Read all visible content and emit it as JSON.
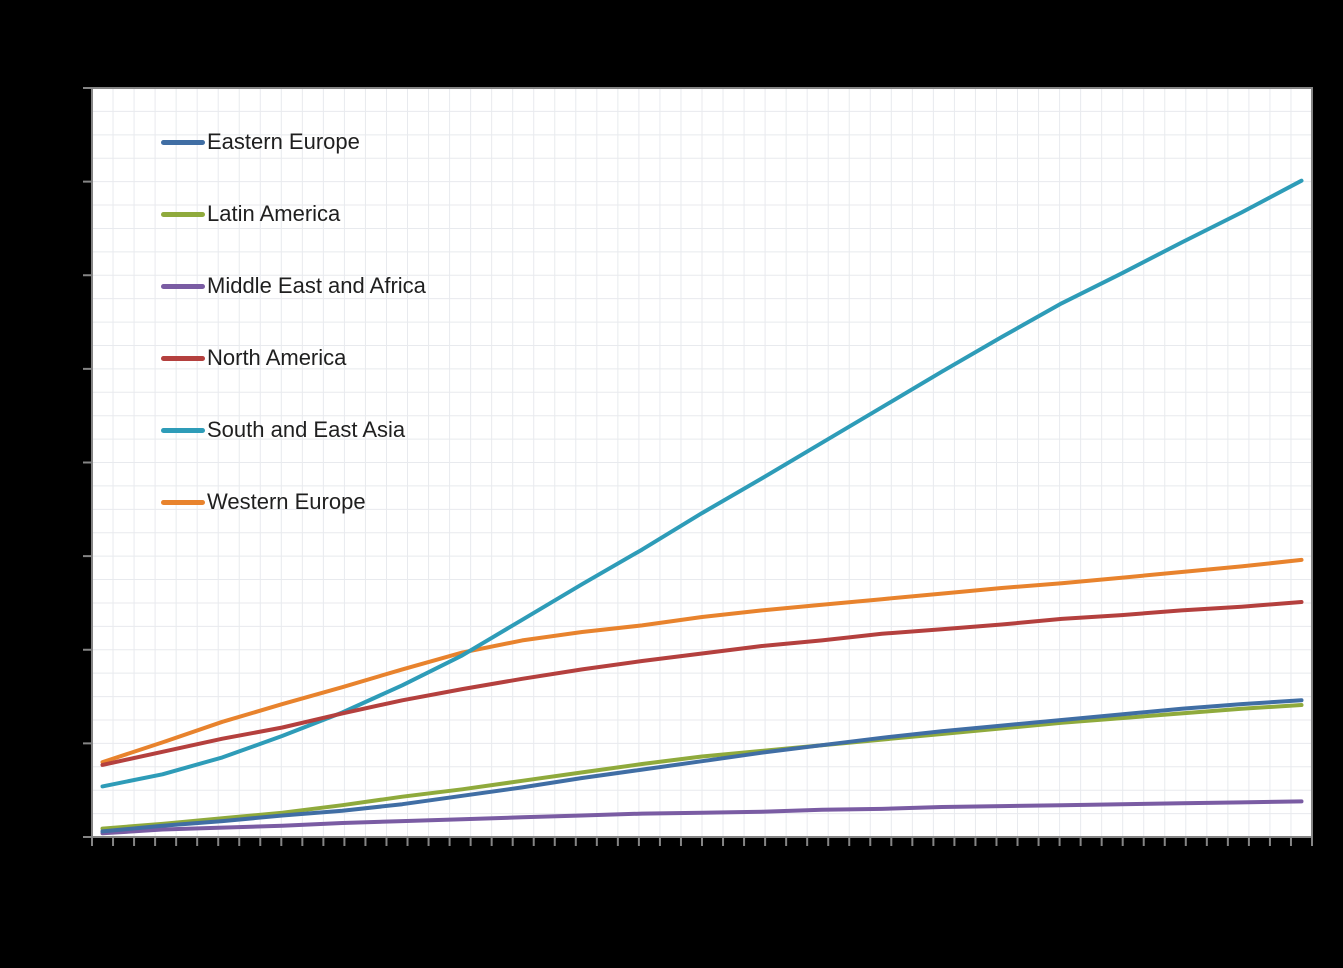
{
  "page": {
    "background_color": "#000000",
    "title": "",
    "axes_note": "axis tick labels and chart title are not visible in the screenshot (black-on-black margins); y values are expressed in major-gridline units (0 = x-axis, 8 = plot top), x as fraction of the category span"
  },
  "chart_data": {
    "type": "line",
    "title": "",
    "xlabel": "",
    "ylabel": "",
    "legend_position": "inside-top-left",
    "grid_on": true,
    "plot_bg_color": "#ffffff",
    "gridline_color": "#e8eaee",
    "axis_color": "#858585",
    "x_axis": {
      "tick_count": 59,
      "category_count": 58,
      "labels_visible": false
    },
    "y_axis": {
      "major_divisions": 8,
      "minor_per_major": 4,
      "labels_visible": false,
      "ylim_units": [
        0,
        8
      ]
    },
    "draw_order": [
      "Western Europe",
      "South and East Asia",
      "North America",
      "Middle East and Africa",
      "Latin America",
      "Eastern Europe"
    ],
    "series": [
      {
        "name": "Eastern Europe",
        "color": "#406EA4",
        "points": [
          [
            0,
            0.06
          ],
          [
            0.05,
            0.12
          ],
          [
            0.1,
            0.17
          ],
          [
            0.15,
            0.23
          ],
          [
            0.2,
            0.28
          ],
          [
            0.25,
            0.35
          ],
          [
            0.3,
            0.44
          ],
          [
            0.35,
            0.53
          ],
          [
            0.4,
            0.63
          ],
          [
            0.45,
            0.72
          ],
          [
            0.5,
            0.81
          ],
          [
            0.55,
            0.9
          ],
          [
            0.6,
            0.98
          ],
          [
            0.65,
            1.06
          ],
          [
            0.7,
            1.13
          ],
          [
            0.75,
            1.19
          ],
          [
            0.8,
            1.25
          ],
          [
            0.85,
            1.31
          ],
          [
            0.9,
            1.37
          ],
          [
            0.95,
            1.42
          ],
          [
            1,
            1.46
          ]
        ]
      },
      {
        "name": "Latin America",
        "color": "#8FAA3C",
        "points": [
          [
            0,
            0.09
          ],
          [
            0.05,
            0.14
          ],
          [
            0.1,
            0.2
          ],
          [
            0.15,
            0.26
          ],
          [
            0.2,
            0.34
          ],
          [
            0.25,
            0.43
          ],
          [
            0.3,
            0.51
          ],
          [
            0.35,
            0.6
          ],
          [
            0.4,
            0.69
          ],
          [
            0.45,
            0.78
          ],
          [
            0.5,
            0.86
          ],
          [
            0.55,
            0.92
          ],
          [
            0.6,
            0.98
          ],
          [
            0.65,
            1.04
          ],
          [
            0.7,
            1.1
          ],
          [
            0.75,
            1.16
          ],
          [
            0.8,
            1.22
          ],
          [
            0.85,
            1.27
          ],
          [
            0.9,
            1.32
          ],
          [
            0.95,
            1.37
          ],
          [
            1,
            1.41
          ]
        ]
      },
      {
        "name": "Middle East and Africa",
        "color": "#7A5CA3",
        "points": [
          [
            0,
            0.04
          ],
          [
            0.05,
            0.08
          ],
          [
            0.1,
            0.1
          ],
          [
            0.15,
            0.12
          ],
          [
            0.2,
            0.15
          ],
          [
            0.25,
            0.17
          ],
          [
            0.3,
            0.19
          ],
          [
            0.35,
            0.21
          ],
          [
            0.4,
            0.23
          ],
          [
            0.45,
            0.25
          ],
          [
            0.5,
            0.26
          ],
          [
            0.55,
            0.27
          ],
          [
            0.6,
            0.29
          ],
          [
            0.65,
            0.3
          ],
          [
            0.7,
            0.32
          ],
          [
            0.75,
            0.33
          ],
          [
            0.8,
            0.34
          ],
          [
            0.85,
            0.35
          ],
          [
            0.9,
            0.36
          ],
          [
            0.95,
            0.37
          ],
          [
            1,
            0.38
          ]
        ]
      },
      {
        "name": "North America",
        "color": "#B4403E",
        "points": [
          [
            0,
            0.77
          ],
          [
            0.05,
            0.91
          ],
          [
            0.1,
            1.05
          ],
          [
            0.15,
            1.17
          ],
          [
            0.2,
            1.32
          ],
          [
            0.25,
            1.46
          ],
          [
            0.3,
            1.58
          ],
          [
            0.35,
            1.69
          ],
          [
            0.4,
            1.79
          ],
          [
            0.45,
            1.88
          ],
          [
            0.5,
            1.96
          ],
          [
            0.55,
            2.04
          ],
          [
            0.6,
            2.1
          ],
          [
            0.65,
            2.17
          ],
          [
            0.7,
            2.22
          ],
          [
            0.75,
            2.27
          ],
          [
            0.8,
            2.33
          ],
          [
            0.85,
            2.37
          ],
          [
            0.9,
            2.42
          ],
          [
            0.95,
            2.46
          ],
          [
            1,
            2.51
          ]
        ]
      },
      {
        "name": "South and East Asia",
        "color": "#2E9CB8",
        "points": [
          [
            0,
            0.54
          ],
          [
            0.05,
            0.67
          ],
          [
            0.1,
            0.85
          ],
          [
            0.15,
            1.08
          ],
          [
            0.2,
            1.33
          ],
          [
            0.25,
            1.62
          ],
          [
            0.3,
            1.94
          ],
          [
            0.35,
            2.32
          ],
          [
            0.4,
            2.7
          ],
          [
            0.45,
            3.07
          ],
          [
            0.5,
            3.46
          ],
          [
            0.55,
            3.83
          ],
          [
            0.6,
            4.21
          ],
          [
            0.65,
            4.59
          ],
          [
            0.7,
            4.97
          ],
          [
            0.75,
            5.34
          ],
          [
            0.8,
            5.7
          ],
          [
            0.85,
            6.02
          ],
          [
            0.9,
            6.35
          ],
          [
            0.95,
            6.67
          ],
          [
            1,
            7.01
          ]
        ]
      },
      {
        "name": "Western Europe",
        "color": "#E8832D",
        "points": [
          [
            0,
            0.8
          ],
          [
            0.05,
            1.01
          ],
          [
            0.1,
            1.23
          ],
          [
            0.15,
            1.42
          ],
          [
            0.2,
            1.6
          ],
          [
            0.25,
            1.79
          ],
          [
            0.3,
            1.97
          ],
          [
            0.35,
            2.1
          ],
          [
            0.4,
            2.19
          ],
          [
            0.45,
            2.26
          ],
          [
            0.5,
            2.35
          ],
          [
            0.55,
            2.42
          ],
          [
            0.6,
            2.48
          ],
          [
            0.65,
            2.54
          ],
          [
            0.7,
            2.6
          ],
          [
            0.75,
            2.66
          ],
          [
            0.8,
            2.71
          ],
          [
            0.85,
            2.77
          ],
          [
            0.9,
            2.83
          ],
          [
            0.95,
            2.89
          ],
          [
            1,
            2.96
          ]
        ]
      }
    ]
  }
}
